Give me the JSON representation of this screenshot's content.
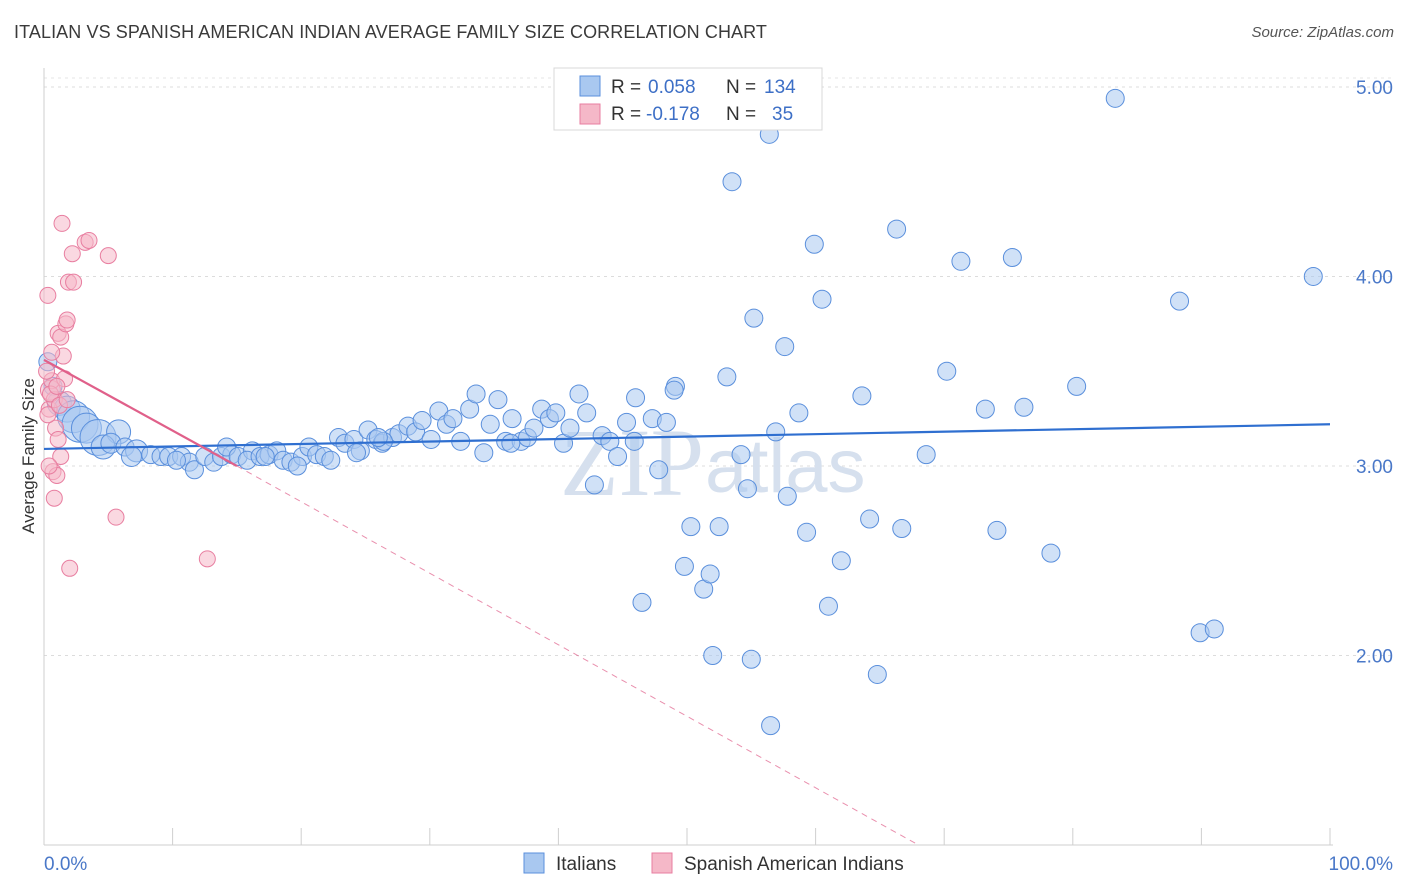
{
  "title": "ITALIAN VS SPANISH AMERICAN INDIAN AVERAGE FAMILY SIZE CORRELATION CHART",
  "source": "Source: ZipAtlas.com",
  "watermark": {
    "zip": "ZIP",
    "atlas": "atlas"
  },
  "colors": {
    "blue_fill": "#a9c8f0",
    "blue_stroke": "#5a8fdc",
    "blue_line": "#2f6fd0",
    "pink_fill": "#f5b8c8",
    "pink_stroke": "#e87ea0",
    "pink_line": "#e0608a"
  },
  "legend": {
    "rows": [
      {
        "r_label": "R =",
        "r_value": "0.058",
        "n_label": "N =",
        "n_value": "134"
      },
      {
        "r_label": "R =",
        "r_value": "-0.178",
        "n_label": "N =",
        "n_value": "35"
      }
    ]
  },
  "bottom_legend": {
    "italians": "Italians",
    "spanish": "Spanish American Indians"
  },
  "chart_data": {
    "type": "scatter",
    "title": "ITALIAN VS SPANISH AMERICAN INDIAN AVERAGE FAMILY SIZE CORRELATION CHART",
    "xlabel": "",
    "ylabel": "Average Family Size",
    "xlim": [
      0,
      100
    ],
    "ylim": [
      1.0,
      5.1
    ],
    "x_tick_labels": [
      "0.0%",
      "100.0%"
    ],
    "y_ticks": [
      2.0,
      3.0,
      4.0,
      5.0
    ],
    "y_tick_labels": [
      "2.00",
      "3.00",
      "4.00",
      "5.00"
    ],
    "grid": "horizontal dashed",
    "series": [
      {
        "name": "Italians",
        "r": 0.058,
        "n": 134,
        "trend": {
          "x": [
            0,
            100
          ],
          "y": [
            3.09,
            3.22
          ]
        },
        "points": [
          [
            0.3,
            3.55,
            9
          ],
          [
            0.7,
            3.42,
            9
          ],
          [
            1.2,
            3.33,
            12
          ],
          [
            1.8,
            3.3,
            13
          ],
          [
            2.3,
            3.26,
            16
          ],
          [
            2.8,
            3.22,
            18
          ],
          [
            3.3,
            3.2,
            15
          ],
          [
            4.2,
            3.15,
            18
          ],
          [
            5.8,
            3.18,
            12
          ],
          [
            4.6,
            3.1,
            12
          ],
          [
            5.2,
            3.12,
            10
          ],
          [
            6.3,
            3.1,
            9
          ],
          [
            7.2,
            3.08,
            11
          ],
          [
            6.8,
            3.05,
            10
          ],
          [
            8.3,
            3.06,
            9
          ],
          [
            9.1,
            3.05,
            9
          ],
          [
            9.7,
            3.05,
            9
          ],
          [
            10.7,
            3.05,
            9
          ],
          [
            11.3,
            3.02,
            9
          ],
          [
            10.3,
            3.03,
            9
          ],
          [
            11.7,
            2.98,
            9
          ],
          [
            12.5,
            3.05,
            9
          ],
          [
            13.2,
            3.02,
            9
          ],
          [
            13.8,
            3.05,
            9
          ],
          [
            14.6,
            3.06,
            9
          ],
          [
            14.2,
            3.1,
            9
          ],
          [
            15.1,
            3.05,
            9
          ],
          [
            16.2,
            3.08,
            9
          ],
          [
            15.8,
            3.03,
            9
          ],
          [
            16.8,
            3.05,
            9
          ],
          [
            17.5,
            3.06,
            9
          ],
          [
            18.1,
            3.08,
            9
          ],
          [
            17.2,
            3.05,
            9
          ],
          [
            18.6,
            3.03,
            9
          ],
          [
            19.2,
            3.02,
            9
          ],
          [
            20.1,
            3.05,
            9
          ],
          [
            19.7,
            3.0,
            9
          ],
          [
            20.6,
            3.1,
            9
          ],
          [
            21.2,
            3.06,
            9
          ],
          [
            21.8,
            3.05,
            9
          ],
          [
            22.3,
            3.03,
            9
          ],
          [
            22.9,
            3.15,
            9
          ],
          [
            23.4,
            3.12,
            9
          ],
          [
            24.1,
            3.14,
            9
          ],
          [
            24.6,
            3.08,
            9
          ],
          [
            25.2,
            3.19,
            9
          ],
          [
            25.8,
            3.14,
            9
          ],
          [
            26.3,
            3.12,
            9
          ],
          [
            27.1,
            3.15,
            9
          ],
          [
            27.6,
            3.17,
            9
          ],
          [
            28.3,
            3.21,
            9
          ],
          [
            28.9,
            3.18,
            9
          ],
          [
            29.4,
            3.24,
            9
          ],
          [
            30.1,
            3.14,
            9
          ],
          [
            30.7,
            3.29,
            9
          ],
          [
            31.3,
            3.22,
            9
          ],
          [
            31.8,
            3.25,
            9
          ],
          [
            32.4,
            3.13,
            9
          ],
          [
            33.1,
            3.3,
            9
          ],
          [
            33.6,
            3.38,
            9
          ],
          [
            34.2,
            3.07,
            9
          ],
          [
            34.7,
            3.22,
            9
          ],
          [
            35.3,
            3.35,
            9
          ],
          [
            35.9,
            3.13,
            9
          ],
          [
            36.4,
            3.25,
            9
          ],
          [
            37.1,
            3.13,
            9
          ],
          [
            37.6,
            3.15,
            9
          ],
          [
            38.1,
            3.2,
            9
          ],
          [
            38.7,
            3.3,
            9
          ],
          [
            39.3,
            3.25,
            9
          ],
          [
            39.8,
            3.28,
            9
          ],
          [
            40.4,
            3.12,
            9
          ],
          [
            40.9,
            3.2,
            9
          ],
          [
            41.6,
            3.38,
            9
          ],
          [
            42.2,
            3.28,
            9
          ],
          [
            42.8,
            2.9,
            9
          ],
          [
            43.4,
            3.16,
            9
          ],
          [
            44.0,
            3.13,
            9
          ],
          [
            44.6,
            3.05,
            9
          ],
          [
            45.3,
            3.23,
            9
          ],
          [
            45.9,
            3.13,
            9
          ],
          [
            46.5,
            2.28,
            9
          ],
          [
            46.0,
            3.36,
            9
          ],
          [
            47.3,
            3.25,
            9
          ],
          [
            47.8,
            2.98,
            9
          ],
          [
            48.4,
            3.23,
            9
          ],
          [
            49.1,
            3.42,
            9
          ],
          [
            49.0,
            3.4,
            9
          ],
          [
            50.3,
            2.68,
            9
          ],
          [
            49.8,
            2.47,
            9
          ],
          [
            51.3,
            2.35,
            9
          ],
          [
            51.8,
            2.43,
            9
          ],
          [
            52.5,
            2.68,
            9
          ],
          [
            53.1,
            3.47,
            9
          ],
          [
            53.5,
            4.5,
            9
          ],
          [
            54.2,
            3.06,
            9
          ],
          [
            54.7,
            2.88,
            9
          ],
          [
            55.2,
            3.78,
            9
          ],
          [
            56.4,
            4.75,
            9
          ],
          [
            56.9,
            3.18,
            9
          ],
          [
            57.6,
            3.63,
            9
          ],
          [
            57.8,
            2.84,
            9
          ],
          [
            58.7,
            3.28,
            9
          ],
          [
            59.3,
            2.65,
            9
          ],
          [
            59.9,
            4.17,
            9
          ],
          [
            60.5,
            3.88,
            9
          ],
          [
            61.0,
            2.26,
            9
          ],
          [
            62.0,
            2.5,
            9
          ],
          [
            63.6,
            3.37,
            9
          ],
          [
            64.2,
            2.72,
            9
          ],
          [
            64.8,
            1.9,
            9
          ],
          [
            66.3,
            4.25,
            9
          ],
          [
            66.7,
            2.67,
            9
          ],
          [
            68.6,
            3.06,
            9
          ],
          [
            70.2,
            3.5,
            9
          ],
          [
            71.3,
            4.08,
            9
          ],
          [
            73.2,
            3.3,
            9
          ],
          [
            74.1,
            2.66,
            9
          ],
          [
            75.3,
            4.1,
            9
          ],
          [
            76.2,
            3.31,
            9
          ],
          [
            78.3,
            2.54,
            9
          ],
          [
            80.3,
            3.42,
            9
          ],
          [
            83.3,
            4.94,
            9
          ],
          [
            88.3,
            3.87,
            9
          ],
          [
            89.9,
            2.12,
            9
          ],
          [
            91.0,
            2.14,
            9
          ],
          [
            98.7,
            4.0,
            9
          ],
          [
            52.0,
            2.0,
            9
          ],
          [
            55.0,
            1.98,
            9
          ],
          [
            56.5,
            1.63,
            9
          ],
          [
            26.4,
            3.13,
            9
          ],
          [
            36.3,
            3.12,
            9
          ],
          [
            26.0,
            3.15,
            9
          ],
          [
            24.3,
            3.07,
            9
          ]
        ]
      },
      {
        "name": "Spanish American Indians",
        "r": -0.178,
        "n": 35,
        "trend": {
          "x": [
            0,
            15
          ],
          "y": [
            3.56,
            3.0
          ]
        },
        "trend_extended": {
          "x": [
            15,
            68
          ],
          "y": [
            3.0,
            1.0
          ]
        },
        "points": [
          [
            0.3,
            3.9,
            8
          ],
          [
            0.5,
            3.4,
            10
          ],
          [
            0.4,
            3.3,
            8
          ],
          [
            0.6,
            3.45,
            8
          ],
          [
            0.8,
            3.35,
            8
          ],
          [
            1.1,
            3.7,
            8
          ],
          [
            1.3,
            3.68,
            8
          ],
          [
            1.5,
            3.58,
            8
          ],
          [
            1.7,
            3.75,
            8
          ],
          [
            1.8,
            3.77,
            8
          ],
          [
            1.9,
            3.97,
            8
          ],
          [
            2.3,
            3.97,
            8
          ],
          [
            1.4,
            4.28,
            8
          ],
          [
            2.2,
            4.12,
            8
          ],
          [
            3.2,
            4.18,
            8
          ],
          [
            3.5,
            4.19,
            8
          ],
          [
            5.0,
            4.11,
            8
          ],
          [
            0.6,
            3.6,
            8
          ],
          [
            0.9,
            3.2,
            8
          ],
          [
            1.1,
            3.14,
            8
          ],
          [
            1.3,
            3.05,
            8
          ],
          [
            1.6,
            3.46,
            8
          ],
          [
            0.7,
            2.97,
            8
          ],
          [
            1.0,
            2.95,
            8
          ],
          [
            0.8,
            2.83,
            8
          ],
          [
            2.0,
            2.46,
            8
          ],
          [
            5.6,
            2.73,
            8
          ],
          [
            12.7,
            2.51,
            8
          ],
          [
            0.5,
            3.38,
            8
          ],
          [
            1.0,
            3.42,
            8
          ],
          [
            0.3,
            3.27,
            8
          ],
          [
            0.4,
            3.0,
            8
          ],
          [
            1.2,
            3.32,
            8
          ],
          [
            0.2,
            3.5,
            8
          ],
          [
            1.8,
            3.35,
            8
          ]
        ]
      }
    ]
  }
}
